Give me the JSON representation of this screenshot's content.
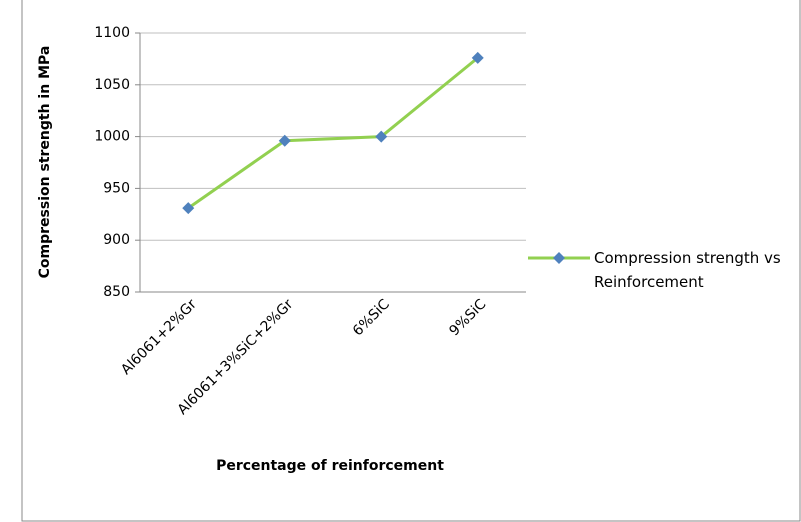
{
  "chart_data": {
    "type": "line",
    "y_label": "Compression strength in MPa",
    "x_label": "Percentage of reinforcement",
    "categories": [
      "Al6061+2%Gr",
      "Al6061+3%SiC+2%Gr",
      "6%SiC",
      "9%SiC"
    ],
    "series": [
      {
        "name": "Compression strength vs Reinforcement",
        "color": "#92d050",
        "marker_color": "#4f81bd",
        "values": [
          931,
          996,
          1000,
          1076
        ]
      }
    ],
    "ylim": [
      850,
      1100
    ],
    "yticks": [
      850,
      900,
      950,
      1000,
      1050,
      1100
    ],
    "grid": true,
    "legend": "right"
  }
}
